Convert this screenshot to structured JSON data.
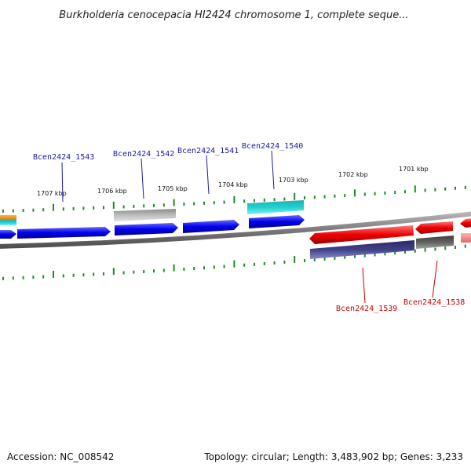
{
  "title": "Burkholderia cenocepacia HI2424 chromosome 1, complete seque...",
  "footer": {
    "accession": "Accession: NC_008542",
    "summary": "Topology: circular; Length: 3,483,902 bp; Genes: 3,233"
  },
  "colors": {
    "forward_strand": "#0000ee",
    "reverse_strand": "#ee0000",
    "forward_label": "#1a1aa8",
    "reverse_label": "#cc0000",
    "tick": "#228b22",
    "backbone": "#8c8c8c"
  },
  "kbp_ticks": [
    "1707 kbp",
    "1706 kbp",
    "1705 kbp",
    "1704 kbp",
    "1703 kbp",
    "1702 kbp",
    "1701 kbp"
  ],
  "forward_gene_labels": [
    "Bcen2424_1543",
    "Bcen2424_1542",
    "Bcen2424_1541",
    "Bcen2424_1540"
  ],
  "reverse_gene_labels": [
    "Bcen2424_1539",
    "Bcen2424_1538"
  ]
}
